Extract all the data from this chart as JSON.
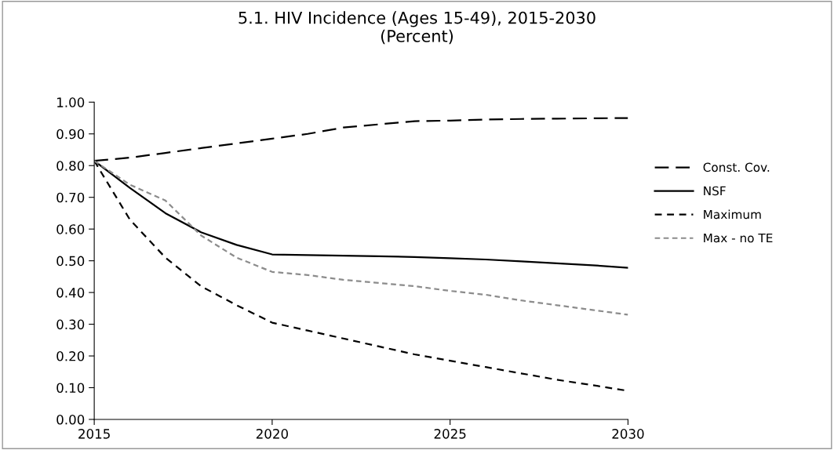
{
  "chart_data": {
    "type": "line",
    "title": "5.1. HIV Incidence (Ages 15-49), 2015-2030\n(Percent)",
    "x": [
      2015,
      2016,
      2017,
      2018,
      2019,
      2020,
      2021,
      2022,
      2023,
      2024,
      2025,
      2026,
      2027,
      2028,
      2029,
      2030
    ],
    "series": [
      {
        "name": "Const. Cov.",
        "color": "#000000",
        "line_style": "dashed",
        "values": [
          0.815,
          0.825,
          0.84,
          0.855,
          0.87,
          0.885,
          0.9,
          0.92,
          0.93,
          0.94,
          0.942,
          0.945,
          0.947,
          0.948,
          0.949,
          0.95
        ]
      },
      {
        "name": "NSF",
        "color": "#000000",
        "line_style": "solid",
        "values": [
          0.815,
          0.73,
          0.65,
          0.59,
          0.55,
          0.52,
          0.518,
          0.516,
          0.514,
          0.512,
          0.508,
          0.504,
          0.498,
          0.492,
          0.486,
          0.478
        ]
      },
      {
        "name": "Maximum",
        "color": "#000000",
        "line_style": "dashed",
        "values": [
          0.815,
          0.63,
          0.51,
          0.42,
          0.36,
          0.305,
          0.28,
          0.255,
          0.23,
          0.205,
          0.185,
          0.165,
          0.145,
          0.125,
          0.108,
          0.09
        ]
      },
      {
        "name": "Max - no TE",
        "color": "#8c8c8c",
        "line_style": "dashed",
        "values": [
          0.815,
          0.74,
          0.69,
          0.58,
          0.51,
          0.465,
          0.455,
          0.44,
          0.43,
          0.42,
          0.405,
          0.393,
          0.375,
          0.36,
          0.345,
          0.33
        ]
      }
    ],
    "xlim": [
      2015,
      2030
    ],
    "xticks": [
      2015,
      2020,
      2025,
      2030
    ],
    "ylim": [
      0,
      1
    ],
    "yticks": [
      {
        "value": 0,
        "label": "0.00"
      },
      {
        "value": 0.1,
        "label": "0.10"
      },
      {
        "value": 0.2,
        "label": "0.20"
      },
      {
        "value": 0.3,
        "label": "0.30"
      },
      {
        "value": 0.4,
        "label": "0.40"
      },
      {
        "value": 0.5,
        "label": "0.50"
      },
      {
        "value": 0.6,
        "label": "0.60"
      },
      {
        "value": 0.7,
        "label": "0.70"
      },
      {
        "value": 0.8,
        "label": "0.80"
      },
      {
        "value": 0.9,
        "label": "0.90"
      },
      {
        "value": 1,
        "label": "1.00"
      }
    ],
    "legend": "right",
    "grid": false,
    "marker": "none"
  }
}
